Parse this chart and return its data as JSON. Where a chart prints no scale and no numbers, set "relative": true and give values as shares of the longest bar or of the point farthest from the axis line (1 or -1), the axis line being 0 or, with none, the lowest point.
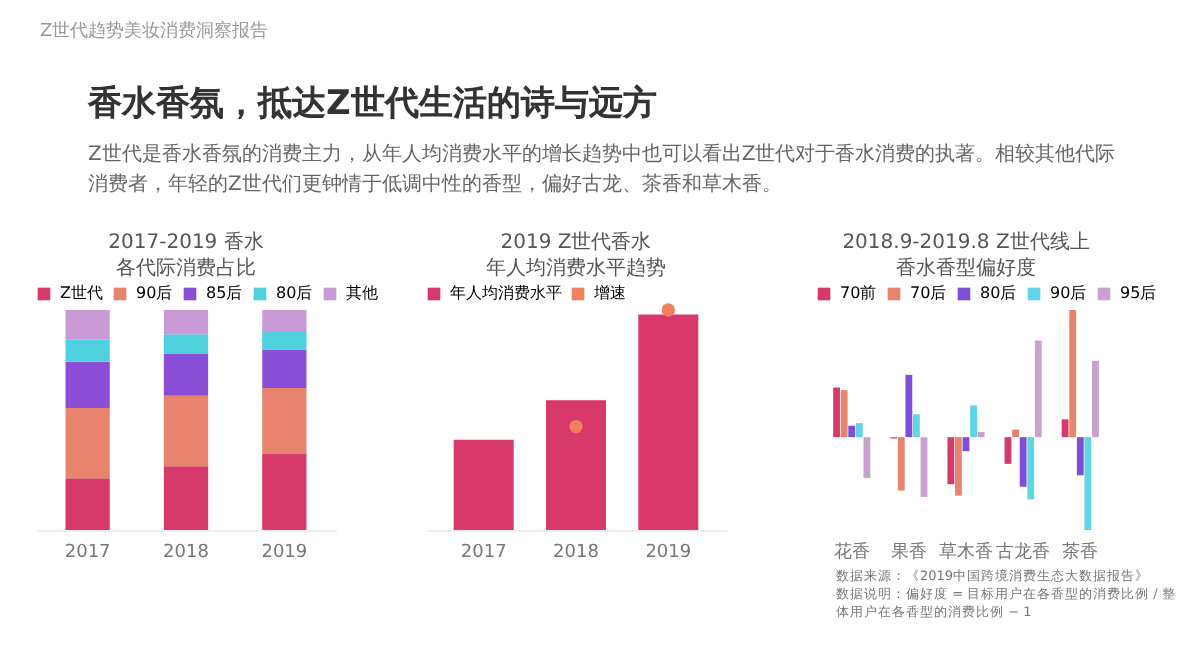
{
  "chart_data": [
    {
      "type": "bar",
      "stacked": true,
      "relative": true,
      "title": "2017-2019 香水",
      "subtitle": "各代际消费占比",
      "legend": "top",
      "annotations": [
        "Z世代趋势美妆消费洞察报告",
        "香水香氛，抵达Z世代生活的诗与远方",
        "Z世代是香水香氛的消费主力，从年人均消费水平的增长趋势中也可以看出Z世代对于香水消费的执著。相较其他代际消费者，年轻的Z世代们更钟情于低调中性的香型，偏好古龙、茶香和草木香。"
      ],
      "categories": [
        "2017",
        "2018",
        "2019"
      ],
      "series": [
        {
          "name": "Z世代",
          "color": "#d63a6a",
          "values": [
            0.235,
            0.29,
            0.345
          ]
        },
        {
          "name": "90后",
          "color": "#e8836e",
          "values": [
            0.32,
            0.32,
            0.3
          ]
        },
        {
          "name": "85后",
          "color": "#8a4fd6",
          "values": [
            0.21,
            0.19,
            0.175
          ]
        },
        {
          "name": "80后",
          "color": "#4fd0df",
          "values": [
            0.1,
            0.09,
            0.085
          ]
        },
        {
          "name": "其他",
          "color": "#c99ad6",
          "values": [
            0.135,
            0.11,
            0.095
          ]
        }
      ]
    },
    {
      "type": "bar",
      "relative": true,
      "title": "2019 Z世代香水",
      "subtitle": "年人均消费水平趋势",
      "legend": "top",
      "marker": "circle",
      "categories": [
        "2017",
        "2018",
        "2019"
      ],
      "series": [
        {
          "name": "年人均消费水平",
          "color": "#d9386a",
          "values": [
            0.41,
            0.59,
            0.98
          ]
        },
        {
          "name": "增速",
          "type": "scatter",
          "color": "#f08060",
          "values": [
            null,
            0.47,
            1
          ]
        }
      ]
    },
    {
      "type": "bar",
      "relative": true,
      "title": "2018.9-2019.8 Z世代线上",
      "subtitle": "香水香型偏好度",
      "legend": "top",
      "annotations": [
        "数据来源：《2019中国跨境消费生态大数据报告》",
        "数据说明：偏好度 = 目标用户在各香型的消费比例 / 整体用户在各香型的消费比例 − 1"
      ],
      "categories": [
        "花香",
        "果香",
        "草木香",
        "古龙香",
        "茶香"
      ],
      "series": [
        {
          "name": "70前",
          "color": "#d63a6a",
          "values": [
            0.39,
            -0.01,
            -0.37,
            -0.21,
            0.14
          ]
        },
        {
          "name": "70后",
          "color": "#e8836e",
          "values": [
            0.37,
            -0.42,
            -0.46,
            0.06,
            1
          ]
        },
        {
          "name": "80后",
          "color": "#7d4fd6",
          "values": [
            0.09,
            0.49,
            -0.11,
            -0.39,
            -0.3
          ]
        },
        {
          "name": "90后",
          "color": "#5fd6e6",
          "values": [
            0.11,
            0.18,
            0.25,
            -0.49,
            -0.73
          ]
        },
        {
          "name": "95后",
          "color": "#c9a0d0",
          "values": [
            -0.32,
            -0.47,
            0.04,
            0.76,
            0.6
          ]
        }
      ]
    }
  ]
}
